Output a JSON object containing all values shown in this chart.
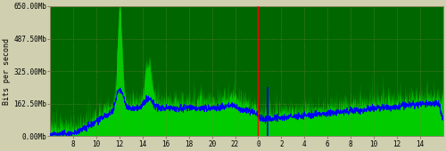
{
  "ylabel": "Bits per second",
  "yticks": [
    0,
    162500000,
    325000000,
    487500000,
    650000000
  ],
  "ytick_labels": [
    "0.00Mb",
    "162.50Mb",
    "325.00Mb",
    "487.50Mb",
    "650.00Mb"
  ],
  "xtick_positions": [
    2,
    4,
    6,
    8,
    10,
    12,
    14,
    16,
    18,
    20,
    22,
    24,
    26,
    28,
    30,
    32
  ],
  "xtick_labels": [
    "8",
    "10",
    "12",
    "14",
    "16",
    "18",
    "20",
    "22",
    "0",
    "2",
    "4",
    "6",
    "8",
    "10",
    "12",
    "14"
  ],
  "xlim": [
    0,
    34
  ],
  "ylim": [
    0,
    650000000
  ],
  "fig_bg": "#d0d0b0",
  "plot_bg": "#006600",
  "fill_color": "#00cc00",
  "line_color": "#0000ff",
  "red_line_x": 18,
  "blue_spike_x": 18.8,
  "blue_spike_height": 0.38,
  "seed": 123
}
